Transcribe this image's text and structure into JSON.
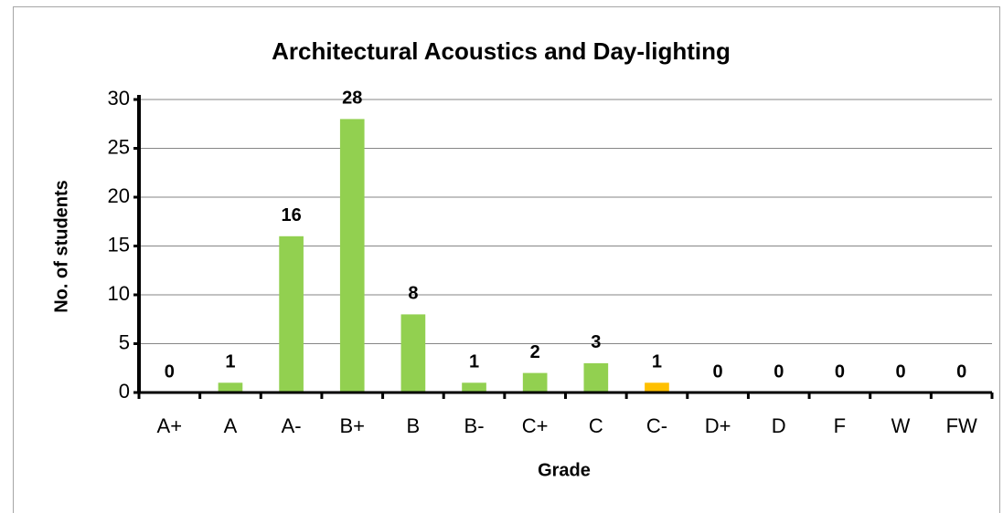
{
  "chart_data": {
    "type": "bar",
    "title": "Architectural Acoustics and Day-lighting",
    "x_label": "Grade",
    "y_label": "No. of students",
    "categories": [
      "A+",
      "A",
      "A-",
      "B+",
      "B",
      "B-",
      "C+",
      "C",
      "C-",
      "D+",
      "D",
      "F",
      "W",
      "FW"
    ],
    "values": [
      0,
      1,
      16,
      28,
      8,
      1,
      2,
      3,
      1,
      0,
      0,
      0,
      0,
      0
    ],
    "colors": [
      "#92d050",
      "#92d050",
      "#92d050",
      "#92d050",
      "#92d050",
      "#92d050",
      "#92d050",
      "#92d050",
      "#ffc000",
      "#92d050",
      "#92d050",
      "#92d050",
      "#92d050",
      "#92d050"
    ],
    "ylim": [
      0,
      30
    ],
    "yticks": [
      0,
      5,
      10,
      15,
      20,
      25,
      30
    ],
    "grid": true
  }
}
